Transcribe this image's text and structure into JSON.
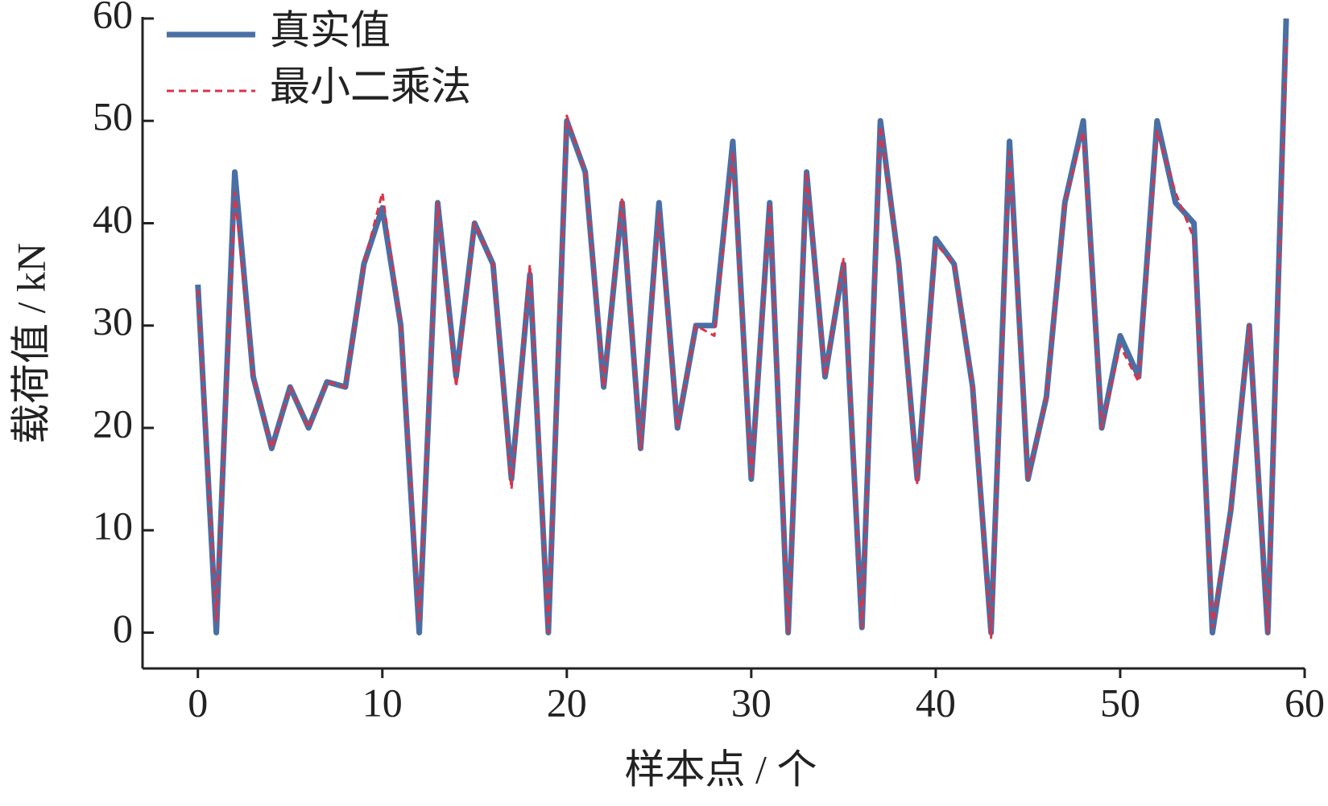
{
  "chart_data": {
    "type": "line",
    "x_label": "样本点 / 个",
    "y_label": "载荷值 / kN",
    "x": [
      0,
      1,
      2,
      3,
      4,
      5,
      6,
      7,
      8,
      9,
      10,
      11,
      12,
      13,
      14,
      15,
      16,
      17,
      18,
      19,
      20,
      21,
      22,
      23,
      24,
      25,
      26,
      27,
      28,
      29,
      30,
      31,
      32,
      33,
      34,
      35,
      36,
      37,
      38,
      39,
      40,
      41,
      42,
      43,
      44,
      45,
      46,
      47,
      48,
      49,
      50,
      51,
      52,
      53,
      54,
      55,
      56,
      57,
      58,
      59
    ],
    "series": [
      {
        "name": "真实值",
        "color": "#4a6fa5",
        "style": "solid",
        "values": [
          34,
          0,
          45,
          25,
          18,
          24,
          20,
          24.5,
          24,
          36,
          41.5,
          30,
          0,
          42,
          25,
          40,
          36,
          15,
          35,
          0,
          50,
          45,
          24,
          42,
          18,
          42,
          20,
          30,
          30,
          48,
          15,
          42,
          0,
          45,
          25,
          36,
          0.5,
          50,
          36,
          15,
          38.5,
          36,
          24,
          0,
          48,
          15,
          23,
          42,
          50,
          20,
          29,
          25,
          50,
          42,
          40,
          0,
          12,
          30,
          0,
          60
        ]
      },
      {
        "name": "最小二乘法",
        "color": "#d9344a",
        "style": "dashed",
        "values": [
          33.5,
          1,
          43,
          25,
          18,
          24,
          20,
          24.5,
          24,
          36,
          43,
          30,
          1,
          42,
          24,
          40,
          36,
          14,
          36,
          0,
          50.5,
          45,
          24,
          42.5,
          18,
          41,
          20,
          30,
          29,
          47,
          15,
          42,
          0,
          45,
          25,
          36.5,
          0.5,
          49.5,
          36,
          14.5,
          38,
          36,
          24,
          -0.5,
          47,
          15,
          23,
          42,
          49,
          20,
          28,
          24.5,
          49,
          43,
          38.5,
          0.5,
          12,
          30,
          0,
          58
        ]
      }
    ],
    "xlim": [
      -3,
      60
    ],
    "ylim": [
      -3.5,
      60
    ],
    "xticks": [
      0,
      10,
      20,
      30,
      40,
      50,
      60
    ],
    "yticks": [
      0,
      10,
      20,
      30,
      40,
      50,
      60
    ],
    "legend": "upper-left"
  }
}
